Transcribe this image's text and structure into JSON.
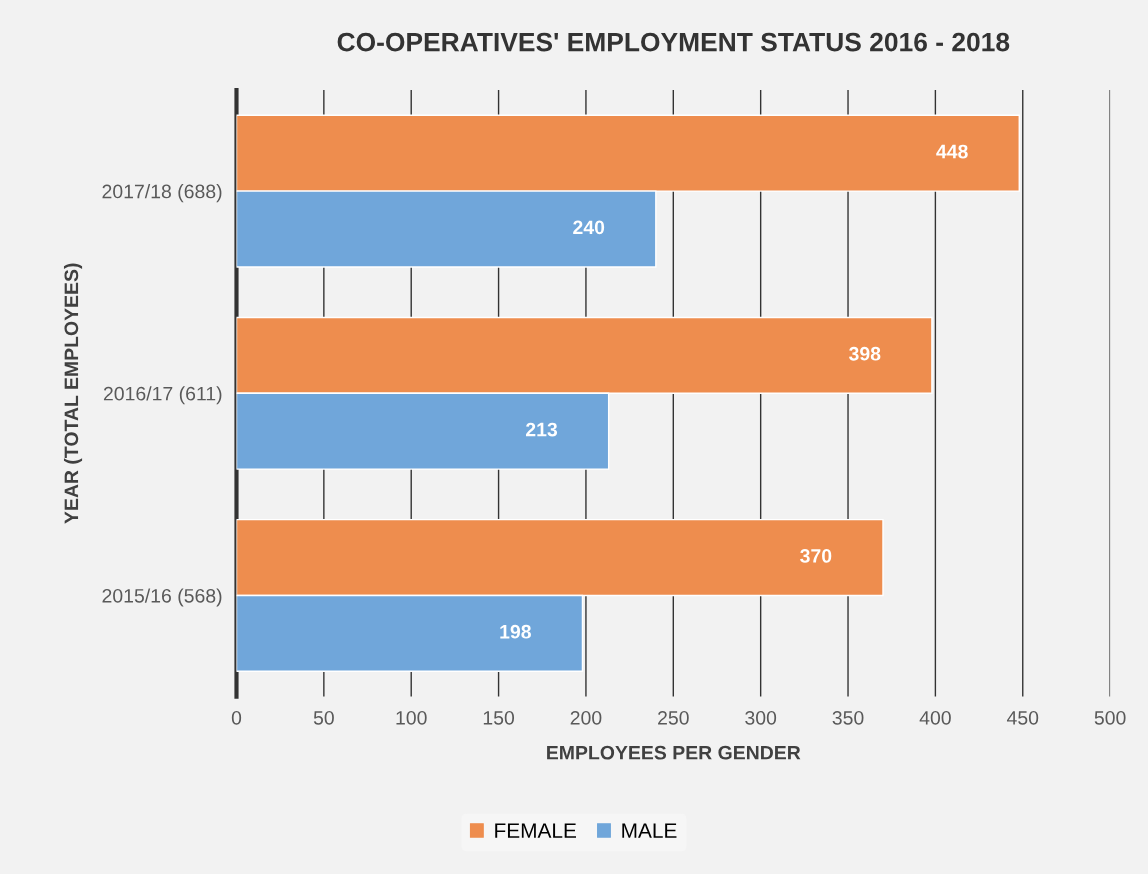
{
  "chart_data": {
    "type": "bar",
    "orientation": "horizontal",
    "title": "CO-OPERATIVES' EMPLOYMENT STATUS 2016 - 2018",
    "xlabel": "EMPLOYEES PER GENDER",
    "ylabel": "YEAR (TOTAL EMPLOYEES)",
    "categories": [
      "2017/18 (688)",
      "2016/17 (611)",
      "2015/16 (568)"
    ],
    "series": [
      {
        "name": "FEMALE",
        "color": "#ee8d4e",
        "values": [
          448,
          398,
          370
        ]
      },
      {
        "name": "MALE",
        "color": "#70a6da",
        "values": [
          240,
          213,
          198
        ]
      }
    ],
    "xlim": [
      0,
      500
    ],
    "xticks": [
      0,
      50,
      100,
      150,
      200,
      250,
      300,
      350,
      400,
      450,
      500
    ],
    "grid": "x",
    "legend": "bottom",
    "data_labels": true
  }
}
